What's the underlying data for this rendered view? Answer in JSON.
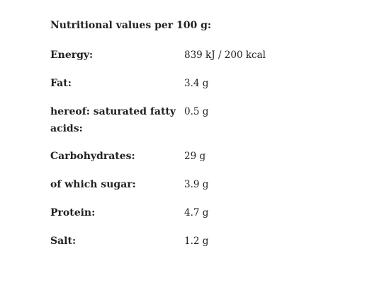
{
  "title": "Nutritional values per 100 g:",
  "rows": [
    [
      "Energy:",
      "839 kJ / 200 kcal"
    ],
    [
      "Fat:",
      "3.4 g"
    ],
    [
      "hereof: saturated fatty acids:",
      "0.5 g"
    ],
    [
      "Carbohydrates:",
      "29 g"
    ],
    [
      "of which sugar:",
      "3.9 g"
    ],
    [
      "Protein:",
      "4.7 g"
    ],
    [
      "Salt:",
      "1.2 g"
    ]
  ]
}
